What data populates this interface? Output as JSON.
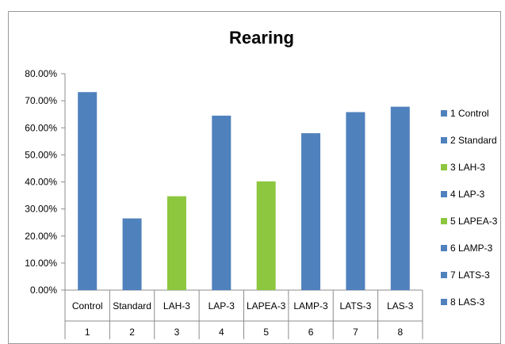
{
  "chart_data": {
    "type": "bar",
    "title": "Rearing",
    "xlabel": "",
    "ylabel": "",
    "ylim": [
      0,
      0.8
    ],
    "y_ticks": [
      "0.00%",
      "10.00%",
      "20.00%",
      "30.00%",
      "40.00%",
      "50.00%",
      "60.00%",
      "70.00%",
      "80.00%"
    ],
    "categories": [
      "Control",
      "Standard",
      "LAH-3",
      "LAP-3",
      "LAPEA-3",
      "LAMP-3",
      "LATS-3",
      "LAS-3"
    ],
    "category_numbers": [
      "1",
      "2",
      "3",
      "4",
      "5",
      "6",
      "7",
      "8"
    ],
    "values": [
      0.732,
      0.265,
      0.347,
      0.645,
      0.402,
      0.58,
      0.658,
      0.678
    ],
    "series_colors": [
      "#4F81BD",
      "#4F81BD",
      "#8DC63F",
      "#4F81BD",
      "#8DC63F",
      "#4F81BD",
      "#4F81BD",
      "#4F81BD"
    ],
    "legend": [
      {
        "label": "1 Control",
        "color": "#4F81BD"
      },
      {
        "label": "2 Standard",
        "color": "#4F81BD"
      },
      {
        "label": "3 LAH-3",
        "color": "#8DC63F"
      },
      {
        "label": "4 LAP-3",
        "color": "#4F81BD"
      },
      {
        "label": "5 LAPEA-3",
        "color": "#8DC63F"
      },
      {
        "label": "6 LAMP-3",
        "color": "#4F81BD"
      },
      {
        "label": "7 LATS-3",
        "color": "#4F81BD"
      },
      {
        "label": "8 LAS-3",
        "color": "#4F81BD"
      }
    ],
    "legend_position": "right",
    "grid": false
  }
}
